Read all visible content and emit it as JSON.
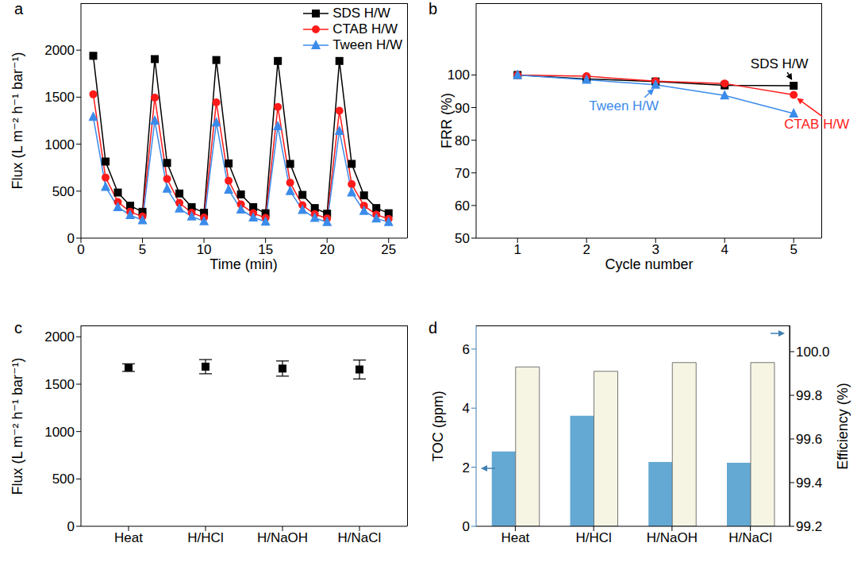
{
  "chart_data": [
    {
      "type": "line",
      "title": "a",
      "x_label": "Time (min)",
      "y_label": "Flux (L m⁻² h⁻¹ bar⁻¹)",
      "x": [
        1,
        2,
        3,
        4,
        5,
        6,
        7,
        8,
        9,
        10,
        11,
        12,
        13,
        14,
        15,
        16,
        17,
        18,
        19,
        20,
        21,
        22,
        23,
        24,
        25
      ],
      "xlim": [
        0,
        26.5
      ],
      "xticks": [
        0,
        5,
        10,
        15,
        20,
        25
      ],
      "ylim": [
        0,
        2500
      ],
      "yticks": [
        0,
        500,
        1000,
        1500,
        2000
      ],
      "grid": false,
      "legend": "upper right",
      "series": [
        {
          "name": "SDS H/W",
          "color": "#000000",
          "marker": "square",
          "values": [
            1940,
            815,
            485,
            345,
            280,
            1905,
            800,
            475,
            330,
            270,
            1895,
            795,
            465,
            330,
            265,
            1885,
            790,
            460,
            320,
            260,
            1885,
            790,
            455,
            320,
            265
          ]
        },
        {
          "name": "CTAB H/W",
          "color": "#ff1a1a",
          "marker": "circle",
          "values": [
            1530,
            645,
            385,
            280,
            230,
            1495,
            630,
            375,
            270,
            220,
            1445,
            610,
            360,
            265,
            215,
            1395,
            590,
            350,
            255,
            210,
            1355,
            575,
            345,
            250,
            205
          ]
        },
        {
          "name": "Tween H/W",
          "color": "#3b8bea",
          "marker": "triangle",
          "values": [
            1290,
            545,
            330,
            245,
            190,
            1250,
            525,
            315,
            230,
            180,
            1230,
            515,
            305,
            220,
            175,
            1190,
            500,
            300,
            215,
            170,
            1140,
            485,
            290,
            210,
            170
          ]
        }
      ]
    },
    {
      "type": "line",
      "title": "b",
      "x_label": "Cycle number",
      "y_label": "FRR (%)",
      "x": [
        1,
        2,
        3,
        4,
        5
      ],
      "xlim": [
        0.4,
        5.4
      ],
      "xticks": [
        1,
        2,
        3,
        4,
        5
      ],
      "ylim": [
        50,
        122
      ],
      "yticks": [
        50,
        60,
        70,
        80,
        90,
        100
      ],
      "grid": false,
      "series": [
        {
          "name": "SDS H/W",
          "color": "#000000",
          "marker": "square",
          "values": [
            100,
            98.8,
            98,
            96.8,
            96.7
          ]
        },
        {
          "name": "CTAB H/W",
          "color": "#ff1a1a",
          "marker": "circle",
          "values": [
            100,
            99.6,
            98.1,
            97.4,
            93.9
          ]
        },
        {
          "name": "Tween H/W",
          "color": "#3b8bea",
          "marker": "triangle",
          "values": [
            100,
            98.5,
            97,
            93.7,
            88.2
          ]
        }
      ]
    },
    {
      "type": "scatter",
      "title": "c",
      "y_label": "Flux (L m⁻² h⁻¹ bar⁻¹)",
      "categories": [
        "Heat",
        "H/HCl",
        "H/NaOH",
        "H/NaCl"
      ],
      "values": [
        1675,
        1685,
        1665,
        1655
      ],
      "errors": [
        40,
        75,
        80,
        100
      ],
      "color": "#000000",
      "marker": "square",
      "ylim": [
        0,
        2120
      ],
      "yticks": [
        0,
        500,
        1000,
        1500,
        2000
      ],
      "grid": false
    },
    {
      "type": "bar",
      "title": "d",
      "categories": [
        "Heat",
        "H/HCl",
        "H/NaOH",
        "H/NaCl"
      ],
      "ylim": [
        0,
        6.8
      ],
      "yticks": [
        0,
        2,
        4,
        6
      ],
      "y2lim": [
        99.2,
        100.12
      ],
      "y2ticks": [
        99.2,
        99.4,
        99.6,
        99.8,
        {
          "value": 100,
          "label": "100.0"
        }
      ],
      "grid": false,
      "series": [
        {
          "name": "TOC (ppm)",
          "color": "#64a9d3",
          "values": [
            2.53,
            3.74,
            2.18,
            2.15
          ]
        },
        {
          "name": "Efficiency (%)",
          "color": "#f6f4e3",
          "axis": "y2",
          "values": [
            99.93,
            99.91,
            99.95,
            99.95
          ]
        }
      ]
    }
  ]
}
